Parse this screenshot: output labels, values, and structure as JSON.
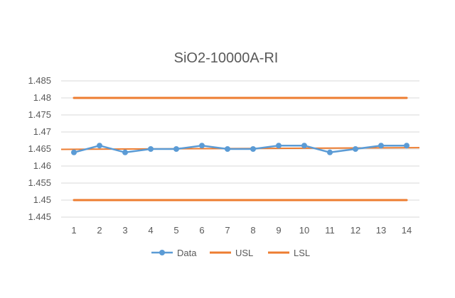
{
  "chart_data": {
    "type": "line",
    "title": "SiO2-10000A-RI",
    "xlabel": "",
    "ylabel": "",
    "categories": [
      "1",
      "2",
      "3",
      "4",
      "5",
      "6",
      "7",
      "8",
      "9",
      "10",
      "11",
      "12",
      "13",
      "14"
    ],
    "ylim": [
      1.445,
      1.485
    ],
    "yticks": [
      1.445,
      1.45,
      1.455,
      1.46,
      1.465,
      1.47,
      1.475,
      1.48,
      1.485
    ],
    "ytick_labels": [
      "1.445",
      "1.45",
      "1.455",
      "1.46",
      "1.465",
      "1.47",
      "1.475",
      "1.48",
      "1.485"
    ],
    "grid": true,
    "legend_position": "bottom",
    "series": [
      {
        "name": "Data",
        "color": "#5B9BD5",
        "markers": true,
        "values": [
          1.464,
          1.466,
          1.464,
          1.465,
          1.465,
          1.466,
          1.465,
          1.465,
          1.466,
          1.466,
          1.464,
          1.465,
          1.466,
          1.466
        ]
      },
      {
        "name": "USL",
        "color": "#ED7D31",
        "markers": false,
        "values": [
          1.48,
          1.48,
          1.48,
          1.48,
          1.48,
          1.48,
          1.48,
          1.48,
          1.48,
          1.48,
          1.48,
          1.48,
          1.48,
          1.48
        ]
      },
      {
        "name": "LSL",
        "color": "#ED7D31",
        "markers": false,
        "values": [
          1.45,
          1.45,
          1.45,
          1.45,
          1.45,
          1.45,
          1.45,
          1.45,
          1.45,
          1.45,
          1.45,
          1.45,
          1.45,
          1.45
        ]
      }
    ],
    "trendline": {
      "color": "#ED7D31",
      "from": 1.4649,
      "to": 1.4654
    }
  }
}
